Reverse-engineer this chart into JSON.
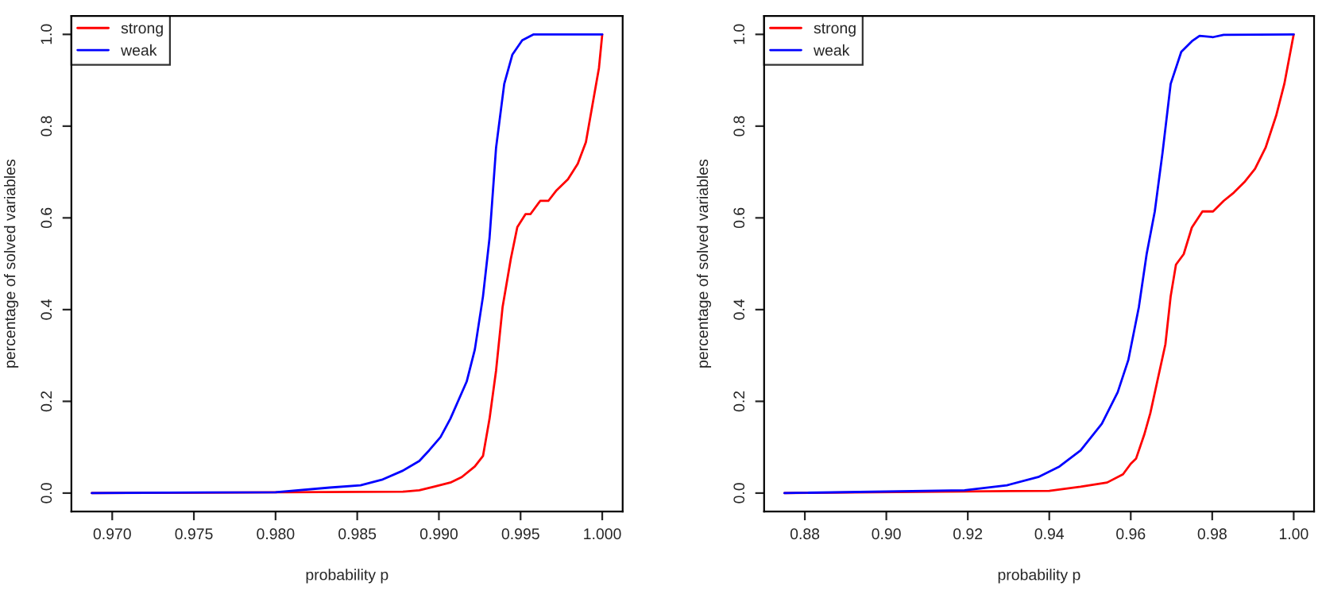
{
  "chart_data": [
    {
      "type": "line",
      "xlabel": "probability p",
      "ylabel": "percentage of solved variables",
      "legend": "top left",
      "grid": false,
      "xlim": [
        0.9675,
        1.00125
      ],
      "ylim": [
        -0.04,
        1.04
      ],
      "xticks": [
        {
          "value": 0.97,
          "label": "0.970"
        },
        {
          "value": 0.975,
          "label": "0.975"
        },
        {
          "value": 0.98,
          "label": "0.980"
        },
        {
          "value": 0.985,
          "label": "0.985"
        },
        {
          "value": 0.99,
          "label": "0.990"
        },
        {
          "value": 0.995,
          "label": "0.995"
        },
        {
          "value": 1.0,
          "label": "1.000"
        }
      ],
      "yticks": [
        {
          "value": 0.0,
          "label": "0.0"
        },
        {
          "value": 0.2,
          "label": "0.2"
        },
        {
          "value": 0.4,
          "label": "0.4"
        },
        {
          "value": 0.6,
          "label": "0.6"
        },
        {
          "value": 0.8,
          "label": "0.8"
        },
        {
          "value": 1.0,
          "label": "1.0"
        }
      ],
      "series": [
        {
          "name": "strong",
          "color": "#ff0000",
          "x": [
            0.96875,
            0.9878,
            0.9888,
            0.9897,
            0.9907,
            0.9914,
            0.9922,
            0.9927,
            0.9931,
            0.9935,
            0.9939,
            0.9944,
            0.9948,
            0.9953,
            0.9956,
            0.9962,
            0.9967,
            0.9972,
            0.9979,
            0.9985,
            0.999,
            0.9994,
            0.9998,
            1.0
          ],
          "values": [
            0,
            0.003,
            0.006,
            0.014,
            0.023,
            0.035,
            0.058,
            0.081,
            0.162,
            0.267,
            0.406,
            0.51,
            0.58,
            0.608,
            0.608,
            0.637,
            0.637,
            0.66,
            0.684,
            0.718,
            0.765,
            0.846,
            0.927,
            1.0
          ]
        },
        {
          "name": "weak",
          "color": "#0000ff",
          "x": [
            0.96875,
            0.98,
            0.9833,
            0.9852,
            0.9865,
            0.9878,
            0.9888,
            0.9894,
            0.9901,
            0.9907,
            0.9917,
            0.9922,
            0.9927,
            0.9931,
            0.9935,
            0.994,
            0.9945,
            0.9951,
            0.9958,
            1.0
          ],
          "values": [
            0,
            0.002,
            0.012,
            0.017,
            0.029,
            0.049,
            0.07,
            0.093,
            0.122,
            0.162,
            0.243,
            0.313,
            0.429,
            0.556,
            0.753,
            0.892,
            0.956,
            0.987,
            1.0,
            1.0
          ]
        }
      ]
    },
    {
      "type": "line",
      "xlabel": "probability p",
      "ylabel": "percentage of solved variables",
      "legend": "top left",
      "grid": false,
      "xlim": [
        0.87,
        1.005
      ],
      "ylim": [
        -0.04,
        1.04
      ],
      "xticks": [
        {
          "value": 0.88,
          "label": "0.88"
        },
        {
          "value": 0.9,
          "label": "0.90"
        },
        {
          "value": 0.92,
          "label": "0.92"
        },
        {
          "value": 0.94,
          "label": "0.94"
        },
        {
          "value": 0.96,
          "label": "0.96"
        },
        {
          "value": 0.98,
          "label": "0.98"
        },
        {
          "value": 1.0,
          "label": "1.00"
        }
      ],
      "yticks": [
        {
          "value": 0.0,
          "label": "0.0"
        },
        {
          "value": 0.2,
          "label": "0.2"
        },
        {
          "value": 0.4,
          "label": "0.4"
        },
        {
          "value": 0.6,
          "label": "0.6"
        },
        {
          "value": 0.8,
          "label": "0.8"
        },
        {
          "value": 1.0,
          "label": "1.0"
        }
      ],
      "series": [
        {
          "name": "strong",
          "color": "#ff0000",
          "x": [
            0.875,
            0.94,
            0.9477,
            0.9542,
            0.9581,
            0.96,
            0.9613,
            0.9633,
            0.9648,
            0.9665,
            0.9685,
            0.9698,
            0.9711,
            0.973,
            0.975,
            0.9776,
            0.9802,
            0.9828,
            0.9853,
            0.9879,
            0.9905,
            0.9931,
            0.9957,
            0.9977,
            1.0
          ],
          "values": [
            0,
            0.005,
            0.014,
            0.023,
            0.041,
            0.064,
            0.075,
            0.127,
            0.174,
            0.243,
            0.324,
            0.429,
            0.498,
            0.521,
            0.579,
            0.614,
            0.614,
            0.637,
            0.655,
            0.678,
            0.707,
            0.753,
            0.823,
            0.892,
            1.0
          ]
        },
        {
          "name": "weak",
          "color": "#0000ff",
          "x": [
            0.875,
            0.9192,
            0.9296,
            0.9373,
            0.9425,
            0.9477,
            0.9529,
            0.9568,
            0.9594,
            0.962,
            0.9639,
            0.9659,
            0.9678,
            0.9698,
            0.9724,
            0.975,
            0.9769,
            0.9802,
            0.9828,
            1.0
          ],
          "values": [
            0,
            0.006,
            0.017,
            0.035,
            0.058,
            0.093,
            0.151,
            0.22,
            0.29,
            0.406,
            0.521,
            0.614,
            0.742,
            0.892,
            0.962,
            0.985,
            0.997,
            0.994,
            0.999,
            1.0
          ]
        }
      ]
    }
  ]
}
